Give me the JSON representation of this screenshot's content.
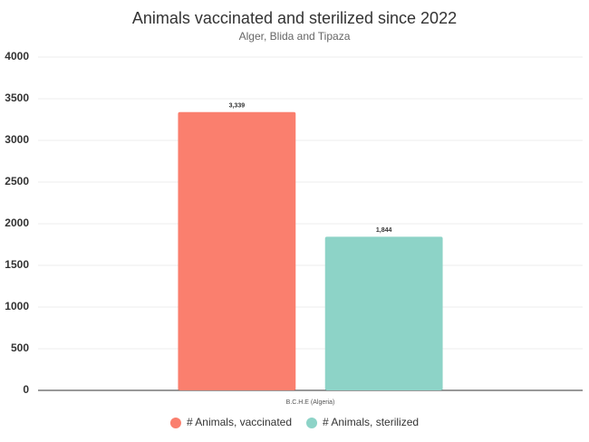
{
  "chart_data": {
    "type": "bar",
    "title": "Animals vaccinated and sterilized since 2022",
    "subtitle": "Alger, Blida and Tipaza",
    "categories": [
      "B.C.H.E (Algeria)"
    ],
    "series": [
      {
        "name": "# Animals, vaccinated",
        "color": "#fa7f6e",
        "values": [
          3339
        ],
        "value_labels": [
          "3,339"
        ]
      },
      {
        "name": "# Animals, sterilized",
        "color": "#8dd3c7",
        "values": [
          1844
        ],
        "value_labels": [
          "1,844"
        ]
      }
    ],
    "ylim": [
      0,
      4000
    ],
    "yticks": [
      0,
      500,
      1000,
      1500,
      2000,
      2500,
      3000,
      3500,
      4000
    ],
    "grid": true
  }
}
